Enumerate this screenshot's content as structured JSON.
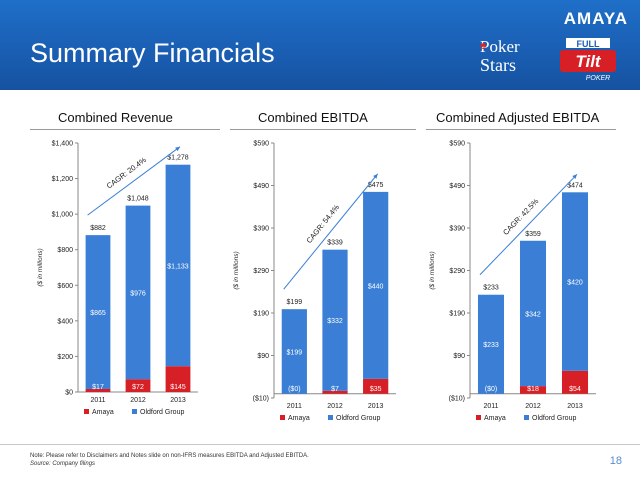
{
  "header": {
    "title": "Summary Financials",
    "brand": "AMAYA",
    "logo_pokerstars_line1": "Poker",
    "logo_pokerstars_line2": "Stars",
    "logo_fulltilt_top": "FULL",
    "logo_fulltilt_mid": "Tilt",
    "logo_fulltilt_bottom": "POKER"
  },
  "colors": {
    "oldford": "#3a7fd5",
    "amaya": "#d71f26",
    "header": "#1a5fb4",
    "arrow": "#3a7fd5"
  },
  "chart_data": [
    {
      "type": "bar",
      "stacked": true,
      "title": "Combined Revenue",
      "ylabel": "($ in millions)",
      "xlabel": "",
      "categories": [
        "2011",
        "2012",
        "2013"
      ],
      "ylim": [
        0,
        1400
      ],
      "yticks": [
        0,
        200,
        400,
        600,
        800,
        1000,
        1200,
        1400
      ],
      "ytick_labels": [
        "$0",
        "$200",
        "$400",
        "$600",
        "$800",
        "$1,000",
        "$1,200",
        "$1,400"
      ],
      "series": [
        {
          "name": "Amaya",
          "values": [
            17,
            72,
            145
          ],
          "labels": [
            "$17",
            "$72",
            "$145"
          ]
        },
        {
          "name": "Oldford Group",
          "values": [
            865,
            976,
            1133
          ],
          "labels": [
            "$865",
            "$976",
            "$1,133"
          ]
        }
      ],
      "totals": [
        882,
        1048,
        1278
      ],
      "total_labels": [
        "$882",
        "$1,048",
        "$1,278"
      ],
      "annotation": "CAGR: 20.4%",
      "legend": [
        "Amaya",
        "Oldford Group"
      ],
      "legend_position": "bottom"
    },
    {
      "type": "bar",
      "stacked": true,
      "title": "Combined EBITDA",
      "ylabel": "($ in millions)",
      "xlabel": "",
      "categories": [
        "2011",
        "2012",
        "2013"
      ],
      "ylim": [
        -10,
        590
      ],
      "yticks": [
        -10,
        90,
        190,
        290,
        390,
        490,
        590
      ],
      "ytick_labels": [
        "($10)",
        "$90",
        "$190",
        "$290",
        "$390",
        "$490",
        "$590"
      ],
      "series": [
        {
          "name": "Amaya",
          "values": [
            0,
            7,
            35
          ],
          "labels": [
            "($0)",
            "$7",
            "$35"
          ]
        },
        {
          "name": "Oldford Group",
          "values": [
            199,
            332,
            440
          ],
          "labels": [
            "$199",
            "$332",
            "$440"
          ]
        }
      ],
      "totals": [
        199,
        339,
        475
      ],
      "total_labels": [
        "$199",
        "$339",
        "$475"
      ],
      "annotation": "CAGR: 54.4%",
      "legend": [
        "Amaya",
        "Oldford Group"
      ],
      "legend_position": "bottom"
    },
    {
      "type": "bar",
      "stacked": true,
      "title": "Combined Adjusted EBITDA",
      "ylabel": "($ in millions)",
      "xlabel": "",
      "categories": [
        "2011",
        "2012",
        "2013"
      ],
      "ylim": [
        -10,
        590
      ],
      "yticks": [
        -10,
        90,
        190,
        290,
        390,
        490,
        590
      ],
      "ytick_labels": [
        "($10)",
        "$90",
        "$190",
        "$290",
        "$390",
        "$490",
        "$590"
      ],
      "series": [
        {
          "name": "Amaya",
          "values": [
            0,
            18,
            54
          ],
          "labels": [
            "($0)",
            "$18",
            "$54"
          ]
        },
        {
          "name": "Oldford Group",
          "values": [
            233,
            342,
            420
          ],
          "labels": [
            "$233",
            "$342",
            "$420"
          ]
        }
      ],
      "totals": [
        233,
        359,
        474
      ],
      "total_labels": [
        "$233",
        "$359",
        "$474"
      ],
      "annotation": "CAGR: 42.5%",
      "legend": [
        "Amaya",
        "Oldford Group"
      ],
      "legend_position": "bottom"
    }
  ],
  "footer": {
    "note": "Note: Please refer to Disclaimers and Notes slide on non-IFRS measures EBITDA and Adjusted EBITDA.",
    "source": "Source: Company filings",
    "page_number": "18"
  }
}
